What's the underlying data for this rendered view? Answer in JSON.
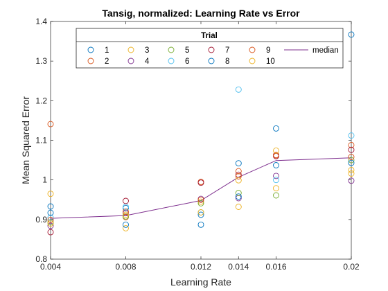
{
  "chart_data": {
    "type": "scatter",
    "title": "Tansig, normalized: Learning Rate vs Error",
    "xlabel": "Learning Rate",
    "ylabel": "Mean Squared Error",
    "xlim": [
      0.004,
      0.02
    ],
    "ylim": [
      0.8,
      1.4
    ],
    "xticks": [
      0.004,
      0.008,
      0.012,
      0.014,
      0.016,
      0.02
    ],
    "xtick_labels": [
      "0.004",
      "0.008",
      "0.012",
      "0.014",
      "0.016",
      "0.02"
    ],
    "yticks": [
      0.8,
      0.9,
      1.0,
      1.1,
      1.2,
      1.3,
      1.4
    ],
    "ytick_labels": [
      "0.8",
      "0.9",
      "1",
      "1.1",
      "1.2",
      "1.3",
      "1.4"
    ],
    "grid": false,
    "x": [
      0.004,
      0.008,
      0.012,
      0.014,
      0.016,
      0.02
    ],
    "legend": {
      "title": "Trial",
      "placement": "top"
    },
    "series": [
      {
        "name": "1",
        "color": "#0072BD",
        "values": [
          0.933,
          0.929,
          0.887,
          1.042,
          1.13,
          1.367
        ]
      },
      {
        "name": "2",
        "color": "#D95319",
        "values": [
          1.141,
          0.906,
          0.995,
          1.022,
          1.062,
          1.088
        ]
      },
      {
        "name": "3",
        "color": "#EDB120",
        "values": [
          0.965,
          0.878,
          0.945,
          0.932,
          0.979,
          1.025
        ]
      },
      {
        "name": "4",
        "color": "#7E2F8E",
        "values": [
          0.884,
          0.916,
          0.952,
          0.954,
          1.01,
          0.998
        ]
      },
      {
        "name": "5",
        "color": "#77AC30",
        "values": [
          0.893,
          0.908,
          0.941,
          0.967,
          0.961,
          1.05
        ]
      },
      {
        "name": "6",
        "color": "#4DBEEE",
        "values": [
          0.905,
          0.932,
          0.918,
          1.228,
          1.0,
          1.112
        ]
      },
      {
        "name": "7",
        "color": "#A2142F",
        "values": [
          0.868,
          0.947,
          0.993,
          1.013,
          1.06,
          1.076
        ]
      },
      {
        "name": "8",
        "color": "#0072BD",
        "values": [
          0.917,
          0.887,
          0.912,
          0.958,
          1.037,
          1.043
        ]
      },
      {
        "name": "9",
        "color": "#D95319",
        "values": [
          0.899,
          0.92,
          0.95,
          1.009,
          1.063,
          1.058
        ]
      },
      {
        "name": "10",
        "color": "#EDB120",
        "values": [
          0.89,
          0.912,
          0.918,
          0.999,
          1.074,
          1.016
        ]
      }
    ],
    "median": {
      "name": "median",
      "color": "#7E2F8E",
      "values": [
        0.903,
        0.91,
        0.948,
        1.007,
        1.049,
        1.056
      ]
    }
  }
}
